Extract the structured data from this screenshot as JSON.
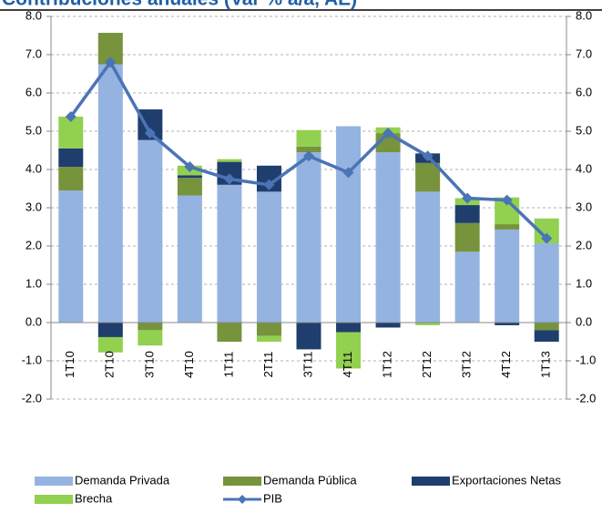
{
  "chart_data": {
    "type": "bar-line",
    "title": "Contribuciones anuales (Var % a/a, AE)",
    "categories": [
      "1T10",
      "2T10",
      "3T10",
      "4T10",
      "1T11",
      "2T11",
      "3T11",
      "4T11",
      "1T12",
      "2T12",
      "3T12",
      "4T12",
      "1T13"
    ],
    "series": [
      {
        "name": "Demanda Privada",
        "color": "#95b3e0",
        "type": "bar",
        "values": [
          3.45,
          6.75,
          4.77,
          3.32,
          3.6,
          3.42,
          4.45,
          5.13,
          4.45,
          3.42,
          1.85,
          2.43,
          2.07
        ]
      },
      {
        "name": "Demanda Pública",
        "color": "#77933c",
        "type": "bar",
        "values": [
          0.62,
          0.82,
          -0.2,
          0.46,
          -0.5,
          -0.35,
          0.15,
          0,
          0.5,
          0.75,
          0.75,
          0.14,
          -0.2
        ]
      },
      {
        "name": "Exportaciones Netas",
        "color": "#1f3e6e",
        "type": "bar",
        "values": [
          0.48,
          -0.38,
          0.8,
          0.07,
          0.6,
          0.68,
          -0.7,
          -0.25,
          -0.13,
          0.25,
          0.47,
          -0.07,
          -0.3
        ]
      },
      {
        "name": "Brecha",
        "color": "#92d050",
        "type": "bar",
        "values": [
          0.83,
          -0.4,
          -0.4,
          0.25,
          0.07,
          -0.15,
          0.43,
          -0.95,
          0.15,
          -0.07,
          0.18,
          0.7,
          0.65
        ]
      },
      {
        "name": "PIB",
        "color": "#4a74b5",
        "type": "line",
        "values": [
          5.38,
          6.8,
          4.95,
          4.07,
          3.75,
          3.6,
          4.35,
          3.92,
          4.95,
          4.35,
          3.25,
          3.2,
          2.2
        ]
      }
    ],
    "ylim": [
      -2,
      8
    ],
    "yticks": [
      {
        "value": -2,
        "label": "-2.0"
      },
      {
        "value": -1,
        "label": "-1.0"
      },
      {
        "value": 0,
        "label": "0.0"
      },
      {
        "value": 1,
        "label": "1.0"
      },
      {
        "value": 2,
        "label": "2.0"
      },
      {
        "value": 3,
        "label": "3.0"
      },
      {
        "value": 4,
        "label": "4.0"
      },
      {
        "value": 5,
        "label": "5.0"
      },
      {
        "value": 6,
        "label": "6.0"
      },
      {
        "value": 7,
        "label": "7.0"
      },
      {
        "value": 8,
        "label": "8.0"
      }
    ],
    "y2lim": [
      -2,
      8
    ],
    "y2ticks": [
      {
        "value": -2,
        "label": "-2.0"
      },
      {
        "value": -1,
        "label": "-1.0"
      },
      {
        "value": 0,
        "label": "0.0"
      },
      {
        "value": 1,
        "label": "1.0"
      },
      {
        "value": 2,
        "label": "2.0"
      },
      {
        "value": 3,
        "label": "3.0"
      },
      {
        "value": 4,
        "label": "4.0"
      },
      {
        "value": 5,
        "label": "5.0"
      },
      {
        "value": 6,
        "label": "6.0"
      },
      {
        "value": 7,
        "label": "7.0"
      },
      {
        "value": 8,
        "label": "8.0"
      }
    ],
    "grid": true
  }
}
